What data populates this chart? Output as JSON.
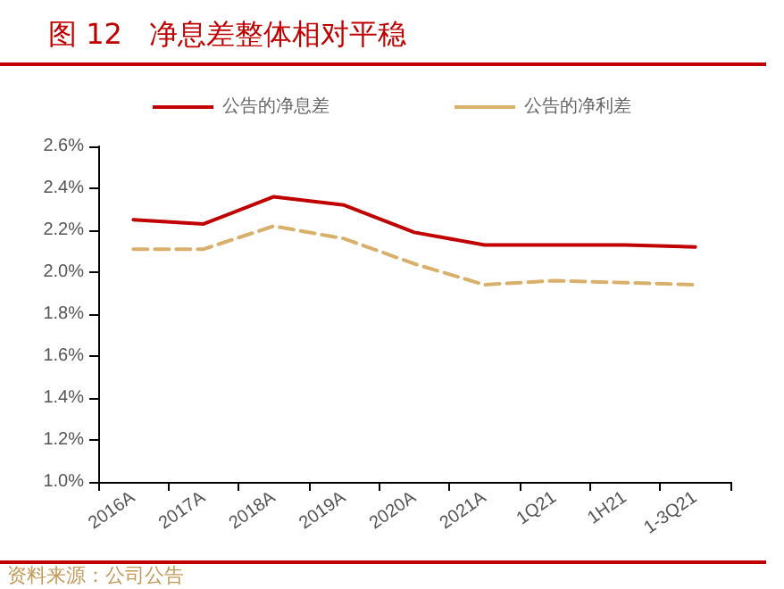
{
  "chart_data": {
    "type": "line",
    "title": "图 12   净息差整体相对平稳",
    "categories": [
      "2016A",
      "2017A",
      "2018A",
      "2019A",
      "2020A",
      "2021A",
      "1Q21",
      "1H21",
      "1-3Q21"
    ],
    "series": [
      {
        "name": "公告的净息差",
        "color": "#c00000",
        "line_style": "solid",
        "values": [
          2.25,
          2.23,
          2.36,
          2.32,
          2.19,
          2.13,
          2.13,
          2.13,
          2.12
        ]
      },
      {
        "name": "公告的净利差",
        "color": "#d9b06b",
        "line_style": "dashed",
        "values": [
          2.11,
          2.11,
          2.22,
          2.16,
          2.04,
          1.94,
          1.96,
          1.95,
          1.94
        ]
      }
    ],
    "ylim": [
      1.0,
      2.6
    ],
    "yticks": [
      {
        "value": 1.0,
        "label": "1.0%"
      },
      {
        "value": 1.2,
        "label": "1.2%"
      },
      {
        "value": 1.4,
        "label": "1.4%"
      },
      {
        "value": 1.6,
        "label": "1.6%"
      },
      {
        "value": 1.8,
        "label": "1.8%"
      },
      {
        "value": 2.0,
        "label": "2.0%"
      },
      {
        "value": 2.2,
        "label": "2.2%"
      },
      {
        "value": 2.4,
        "label": "2.4%"
      },
      {
        "value": 2.6,
        "label": "2.6%"
      }
    ],
    "grid": false,
    "legend": "top",
    "marker": "none",
    "annotations": [
      "资料来源：公司公告"
    ]
  }
}
